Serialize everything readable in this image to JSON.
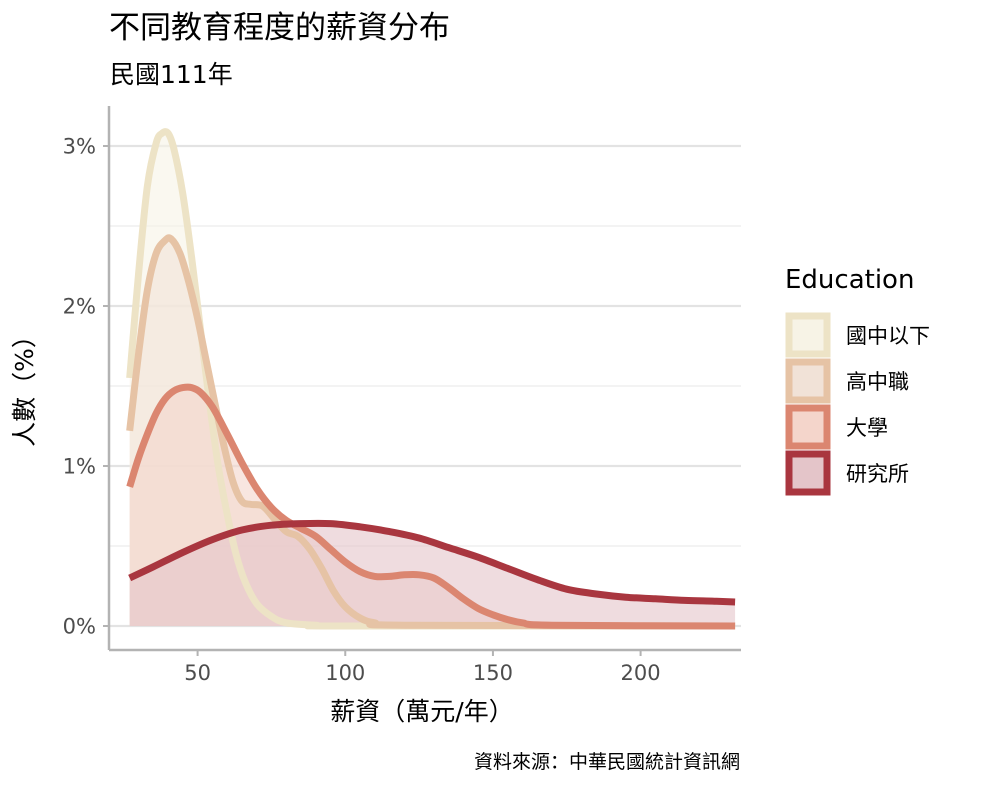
{
  "chart_data": {
    "type": "area",
    "title": "不同教育程度的薪資分布",
    "subtitle": "民國111年",
    "xlabel": "薪資（萬元/年）",
    "ylabel": "人數（%）",
    "caption": "資料來源：中華民國統計資訊網",
    "xlim": [
      20,
      234
    ],
    "ylim": [
      -0.15,
      3.25
    ],
    "x_ticks": [
      50,
      100,
      150,
      200
    ],
    "x_tick_labels": [
      "50",
      "100",
      "150",
      "200"
    ],
    "y_ticks": [
      0,
      1,
      2,
      3
    ],
    "y_tick_labels": [
      "0%",
      "1%",
      "2%",
      "3%"
    ],
    "grid": true,
    "legend": {
      "title": "Education",
      "position": "right"
    },
    "series": [
      {
        "name": "國中以下",
        "color": "#ede3c6",
        "fill": "#f7f3e6",
        "points": [
          [
            27,
            1.55
          ],
          [
            30,
            2.2
          ],
          [
            33,
            2.75
          ],
          [
            36,
            3.02
          ],
          [
            38,
            3.08
          ],
          [
            40,
            3.08
          ],
          [
            42,
            2.98
          ],
          [
            45,
            2.7
          ],
          [
            48,
            2.3
          ],
          [
            51,
            1.85
          ],
          [
            54,
            1.4
          ],
          [
            57,
            1.0
          ],
          [
            60,
            0.7
          ],
          [
            63,
            0.45
          ],
          [
            66,
            0.28
          ],
          [
            70,
            0.14
          ],
          [
            75,
            0.06
          ],
          [
            80,
            0.02
          ],
          [
            90,
            0.005
          ],
          [
            100,
            0
          ],
          [
            232,
            0
          ]
        ]
      },
      {
        "name": "高中職",
        "color": "#e6c3a5",
        "fill": "#f1e2d7",
        "points": [
          [
            27,
            1.22
          ],
          [
            30,
            1.7
          ],
          [
            33,
            2.1
          ],
          [
            36,
            2.33
          ],
          [
            39,
            2.41
          ],
          [
            41,
            2.42
          ],
          [
            44,
            2.33
          ],
          [
            47,
            2.15
          ],
          [
            50,
            1.92
          ],
          [
            53,
            1.65
          ],
          [
            56,
            1.38
          ],
          [
            59,
            1.12
          ],
          [
            62,
            0.9
          ],
          [
            65,
            0.78
          ],
          [
            68,
            0.76
          ],
          [
            72,
            0.75
          ],
          [
            76,
            0.67
          ],
          [
            80,
            0.59
          ],
          [
            84,
            0.56
          ],
          [
            88,
            0.48
          ],
          [
            92,
            0.36
          ],
          [
            96,
            0.22
          ],
          [
            100,
            0.12
          ],
          [
            105,
            0.05
          ],
          [
            110,
            0.02
          ],
          [
            120,
            0.005
          ],
          [
            232,
            0
          ]
        ]
      },
      {
        "name": "大學",
        "color": "#db8670",
        "fill": "#f4d5cb",
        "points": [
          [
            27,
            0.87
          ],
          [
            30,
            1.05
          ],
          [
            33,
            1.2
          ],
          [
            36,
            1.33
          ],
          [
            39,
            1.42
          ],
          [
            42,
            1.47
          ],
          [
            45,
            1.49
          ],
          [
            48,
            1.49
          ],
          [
            51,
            1.46
          ],
          [
            55,
            1.37
          ],
          [
            60,
            1.2
          ],
          [
            65,
            1.02
          ],
          [
            70,
            0.86
          ],
          [
            75,
            0.74
          ],
          [
            80,
            0.66
          ],
          [
            85,
            0.61
          ],
          [
            90,
            0.56
          ],
          [
            95,
            0.48
          ],
          [
            100,
            0.4
          ],
          [
            105,
            0.34
          ],
          [
            110,
            0.31
          ],
          [
            115,
            0.31
          ],
          [
            120,
            0.32
          ],
          [
            125,
            0.32
          ],
          [
            130,
            0.3
          ],
          [
            135,
            0.24
          ],
          [
            140,
            0.17
          ],
          [
            145,
            0.11
          ],
          [
            150,
            0.07
          ],
          [
            155,
            0.04
          ],
          [
            160,
            0.02
          ],
          [
            170,
            0.005
          ],
          [
            232,
            0
          ]
        ]
      },
      {
        "name": "研究所",
        "color": "#a9363f",
        "fill": "#e4c5c9",
        "points": [
          [
            27,
            0.3
          ],
          [
            35,
            0.37
          ],
          [
            45,
            0.46
          ],
          [
            55,
            0.54
          ],
          [
            65,
            0.6
          ],
          [
            75,
            0.63
          ],
          [
            85,
            0.64
          ],
          [
            95,
            0.64
          ],
          [
            105,
            0.62
          ],
          [
            115,
            0.59
          ],
          [
            125,
            0.55
          ],
          [
            135,
            0.49
          ],
          [
            145,
            0.43
          ],
          [
            155,
            0.36
          ],
          [
            165,
            0.29
          ],
          [
            175,
            0.23
          ],
          [
            185,
            0.2
          ],
          [
            195,
            0.18
          ],
          [
            205,
            0.17
          ],
          [
            215,
            0.16
          ],
          [
            225,
            0.155
          ],
          [
            232,
            0.15
          ]
        ]
      }
    ]
  }
}
